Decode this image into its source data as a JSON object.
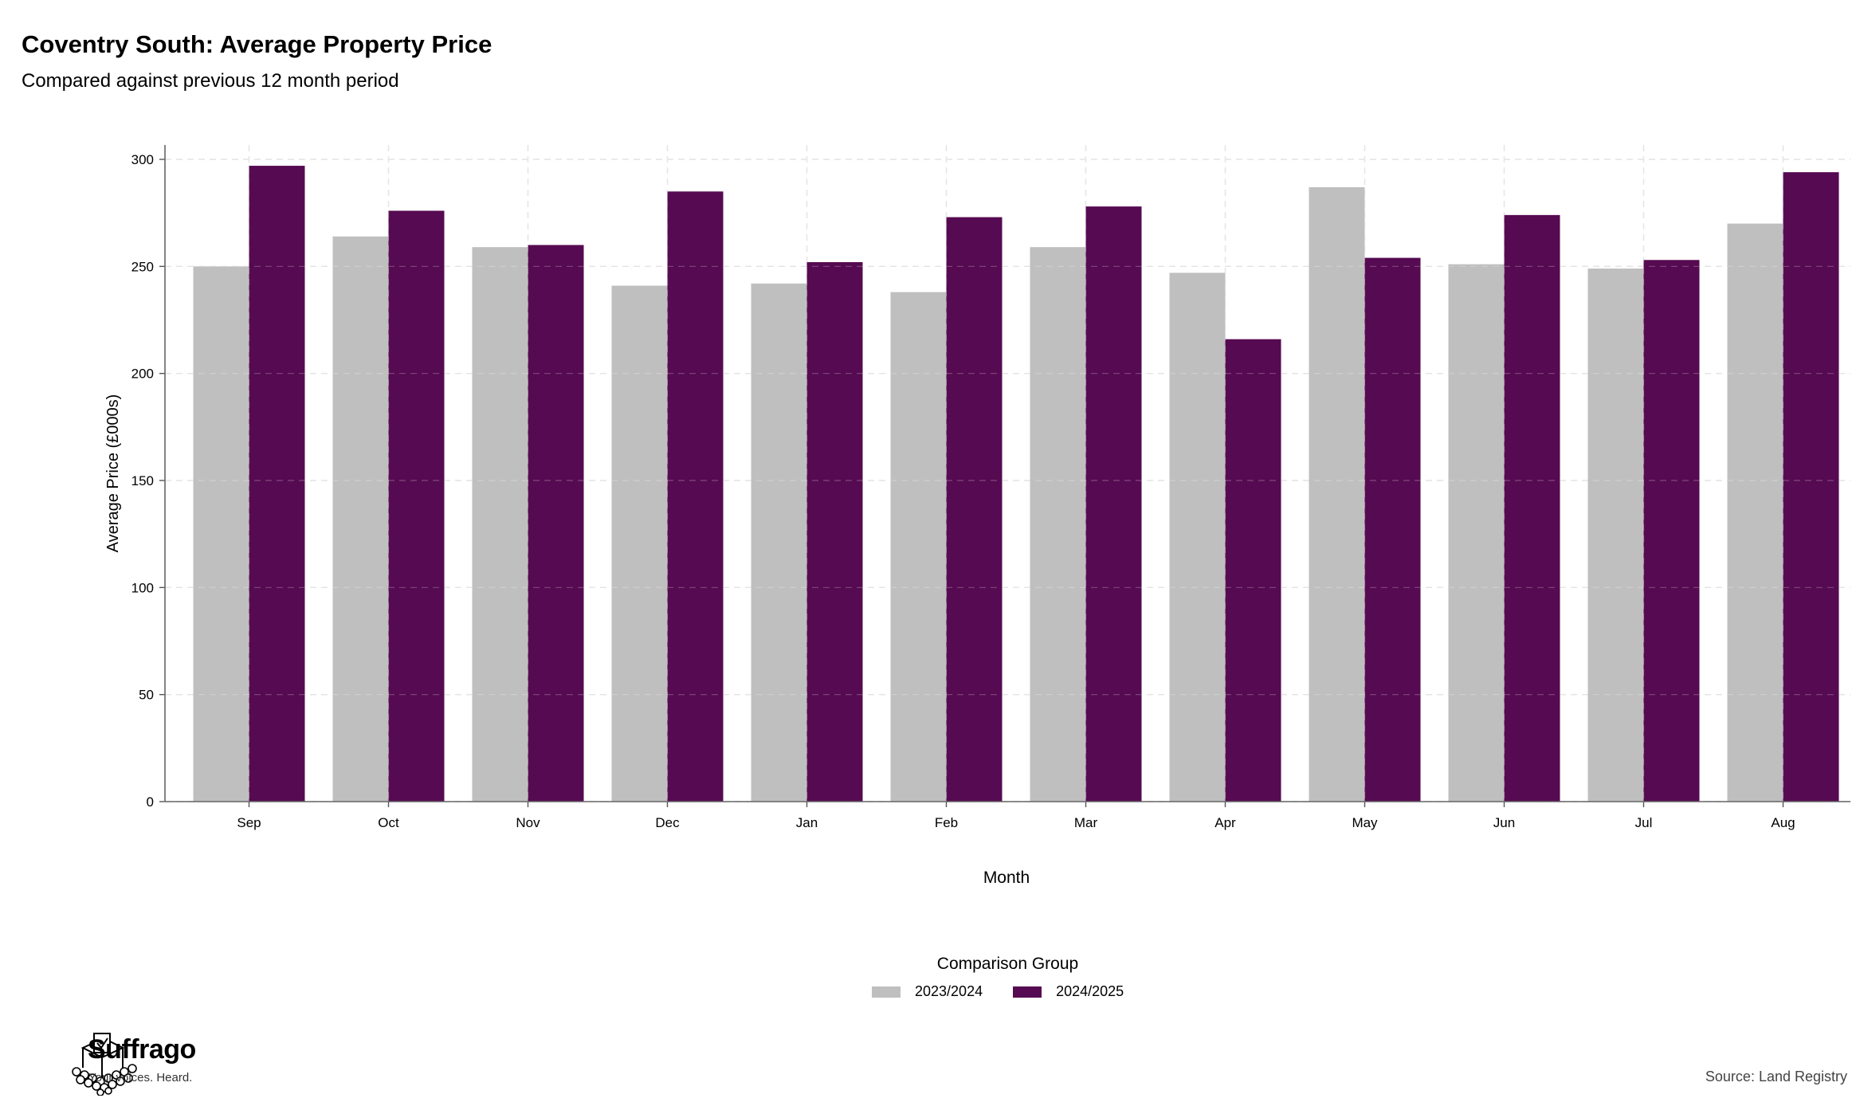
{
  "header": {
    "title": "Coventry South: Average Property Price",
    "subtitle": "Compared against previous 12 month period"
  },
  "chart_data": {
    "type": "bar",
    "title": "Coventry South: Average Property Price",
    "subtitle": "Compared against previous 12 month period",
    "xlabel": "Month",
    "ylabel": "Average Price (£000s)",
    "ylim": [
      0,
      300
    ],
    "yticks": [
      0,
      50,
      100,
      150,
      200,
      250,
      300
    ],
    "grid": true,
    "legend_position": "bottom",
    "categories": [
      "Sep",
      "Oct",
      "Nov",
      "Dec",
      "Jan",
      "Feb",
      "Mar",
      "Apr",
      "May",
      "Jun",
      "Jul",
      "Aug"
    ],
    "series": [
      {
        "name": "2023/2024",
        "color": "#bfbfbf",
        "values": [
          250,
          264,
          259,
          241,
          242,
          238,
          259,
          247,
          287,
          251,
          249,
          270
        ]
      },
      {
        "name": "2024/2025",
        "color": "#560a51",
        "values": [
          297,
          276,
          260,
          285,
          252,
          273,
          278,
          216,
          254,
          274,
          253,
          294
        ]
      }
    ]
  },
  "legend": {
    "title": "Comparison Group",
    "items": [
      {
        "label": "2023/2024",
        "color": "#bfbfbf"
      },
      {
        "label": "2024/2025",
        "color": "#560a51"
      }
    ]
  },
  "footer": {
    "brand": "Suffrago",
    "tagline": "Your voices. Heard.",
    "source": "Source: Land Registry"
  }
}
